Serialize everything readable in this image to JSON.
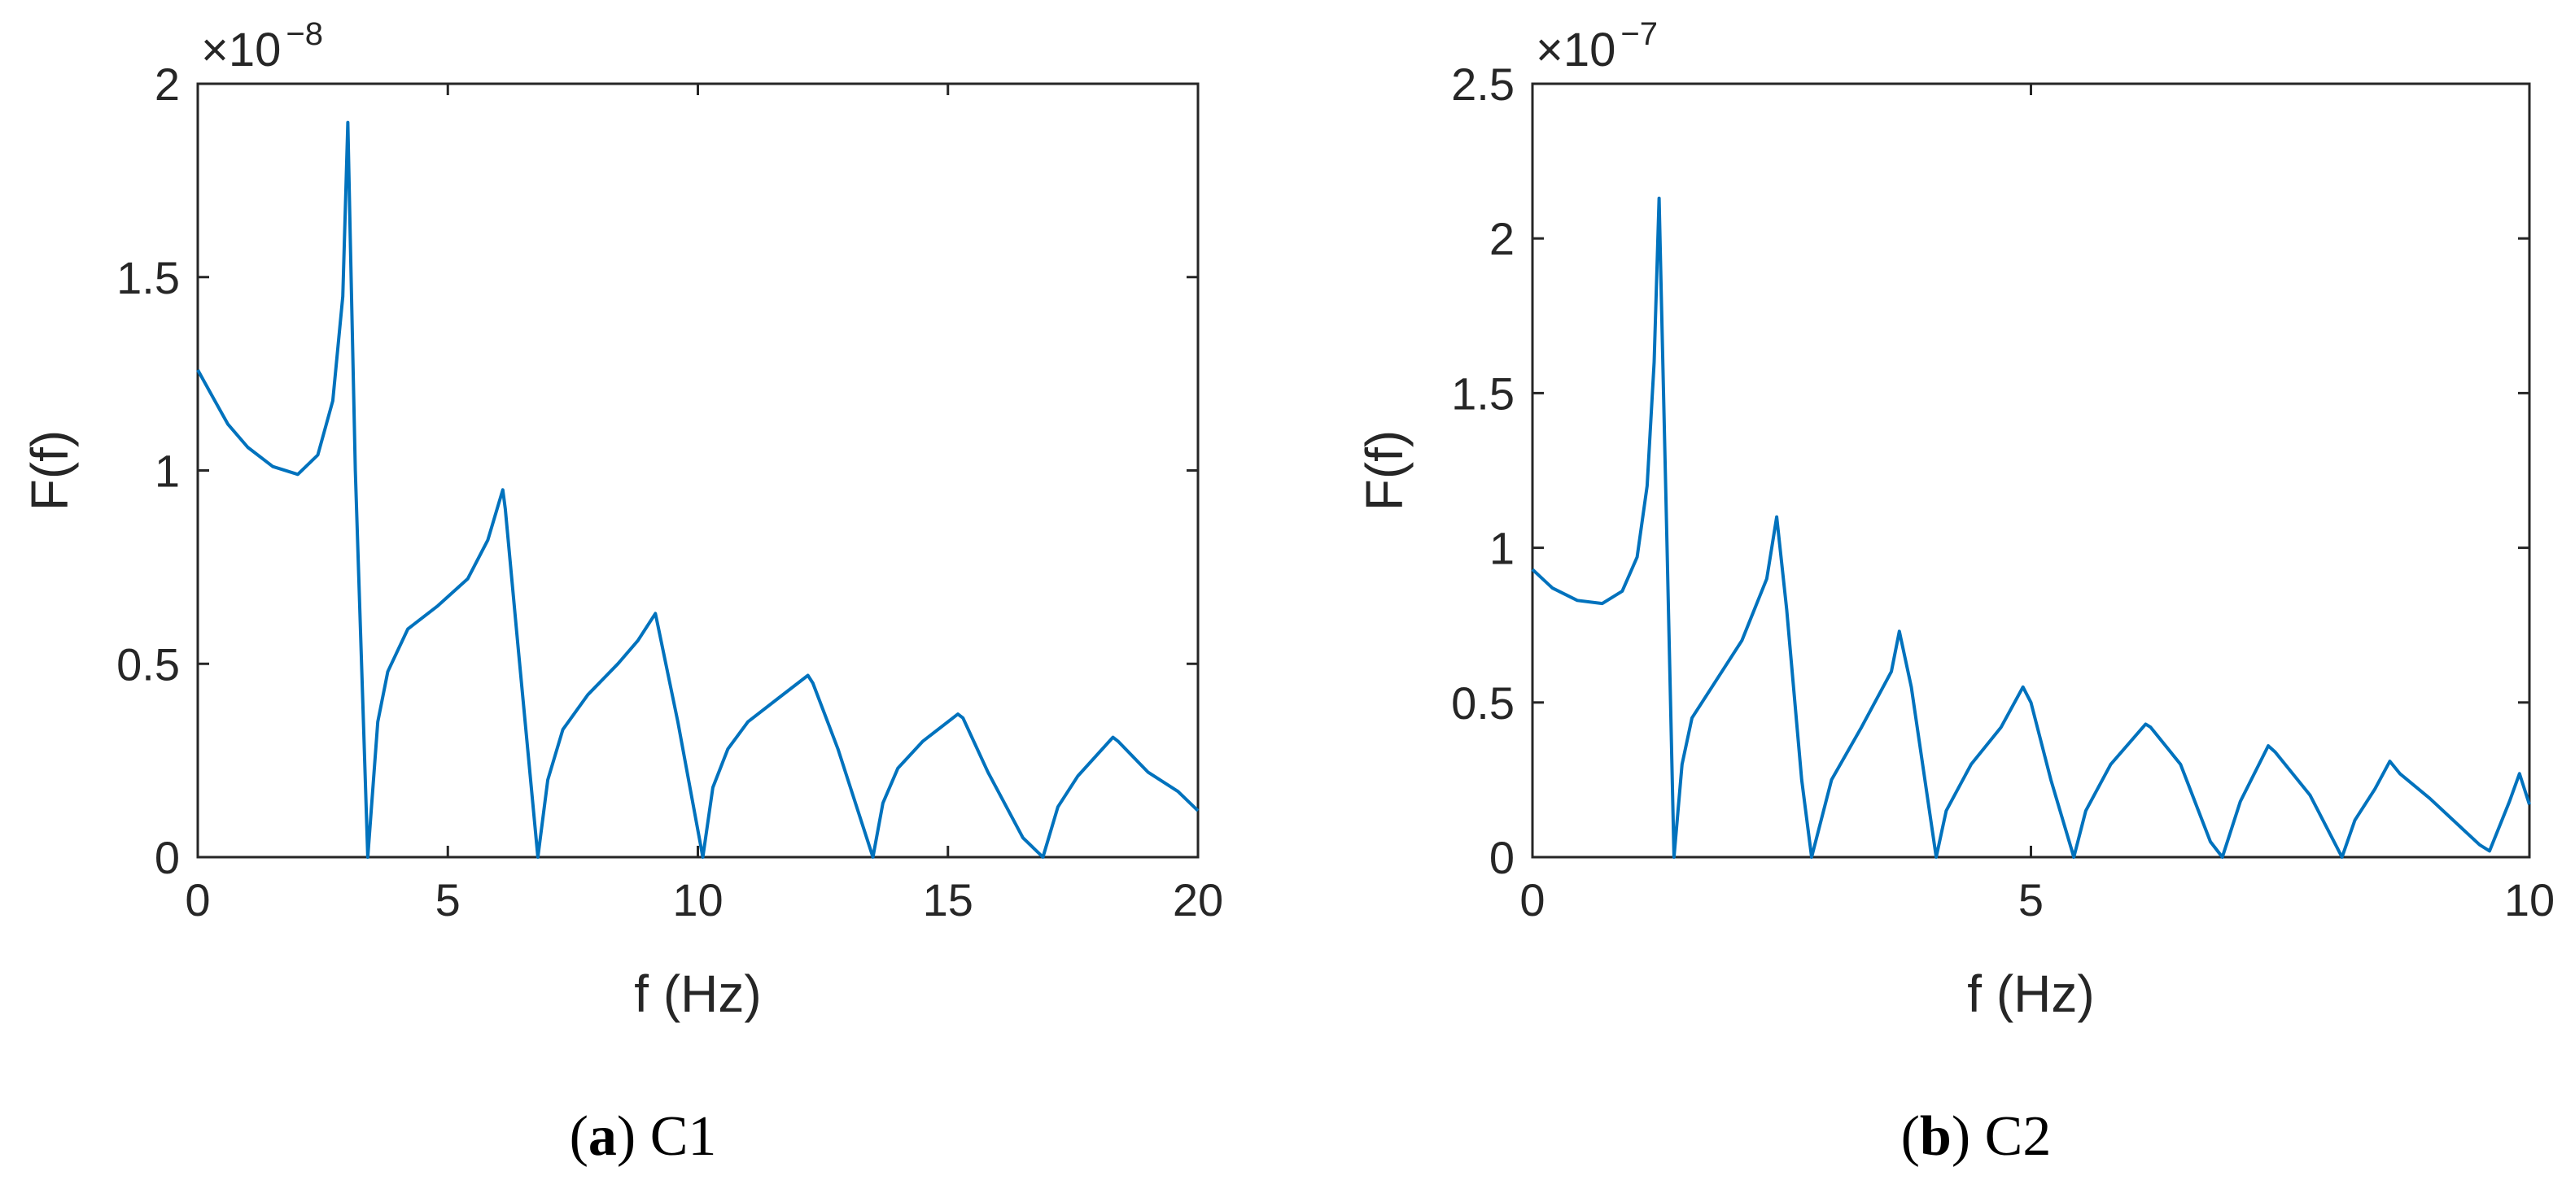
{
  "colors": {
    "series": "#0072BD",
    "axis": "#262626"
  },
  "chart_data": [
    {
      "type": "line",
      "caption": {
        "letter": "a",
        "name": "C1"
      },
      "xlabel": "f (Hz)",
      "ylabel": "F(f)",
      "multiplier": {
        "base": "×10",
        "exponent": "−8"
      },
      "xlim": [
        0,
        20
      ],
      "ylim": [
        0,
        2
      ],
      "xticks": [
        0,
        5,
        10,
        15,
        20
      ],
      "xtick_labels": [
        "0",
        "5",
        "10",
        "15",
        "20"
      ],
      "yticks": [
        0,
        0.5,
        1,
        1.5,
        2
      ],
      "ytick_labels": [
        "0",
        "0.5",
        "1",
        "1.5",
        "2"
      ],
      "series": [
        {
          "x": [
            0,
            0.3,
            0.6,
            1.0,
            1.5,
            2.0,
            2.4,
            2.7,
            2.9,
            3.0,
            3.05,
            3.15,
            3.3,
            3.4,
            3.6,
            3.8,
            4.2,
            4.8,
            5.4,
            5.8,
            6.1,
            6.15,
            6.4,
            6.8,
            7.0,
            7.3,
            7.8,
            8.4,
            8.8,
            9.15,
            9.2,
            9.6,
            10.1,
            10.3,
            10.6,
            11.0,
            11.6,
            12.2,
            12.3,
            12.8,
            13.5,
            13.7,
            14.0,
            14.5,
            15.2,
            15.3,
            15.8,
            16.5,
            16.9,
            17.2,
            17.6,
            18.3,
            18.4,
            19.0,
            19.6,
            20.0
          ],
          "y": [
            1.26,
            1.19,
            1.12,
            1.06,
            1.01,
            0.99,
            1.04,
            1.18,
            1.45,
            1.9,
            1.6,
            1.0,
            0.4,
            0.0,
            0.35,
            0.48,
            0.59,
            0.65,
            0.72,
            0.82,
            0.95,
            0.9,
            0.55,
            0.0,
            0.2,
            0.33,
            0.42,
            0.5,
            0.56,
            0.63,
            0.6,
            0.35,
            0.0,
            0.18,
            0.28,
            0.35,
            0.41,
            0.47,
            0.45,
            0.28,
            0.0,
            0.14,
            0.23,
            0.3,
            0.37,
            0.36,
            0.22,
            0.05,
            0.0,
            0.13,
            0.21,
            0.31,
            0.3,
            0.22,
            0.17,
            0.12
          ]
        }
      ]
    },
    {
      "type": "line",
      "caption": {
        "letter": "b",
        "name": "C2"
      },
      "xlabel": "f (Hz)",
      "ylabel": "F(f)",
      "multiplier": {
        "base": "×10",
        "exponent": "−7"
      },
      "xlim": [
        0,
        10
      ],
      "ylim": [
        0,
        2.5
      ],
      "xticks": [
        0,
        5,
        10
      ],
      "xtick_labels": [
        "0",
        "5",
        "10"
      ],
      "yticks": [
        0,
        0.5,
        1,
        1.5,
        2,
        2.5
      ],
      "ytick_labels": [
        "0",
        "0.5",
        "1",
        "1.5",
        "2",
        "2.5"
      ],
      "series": [
        {
          "x": [
            0,
            0.2,
            0.45,
            0.7,
            0.9,
            1.05,
            1.15,
            1.22,
            1.27,
            1.3,
            1.35,
            1.42,
            1.5,
            1.6,
            1.8,
            2.1,
            2.35,
            2.45,
            2.55,
            2.7,
            2.8,
            3.0,
            3.3,
            3.6,
            3.68,
            3.8,
            4.05,
            4.15,
            4.4,
            4.7,
            4.92,
            5.0,
            5.2,
            5.43,
            5.55,
            5.8,
            6.15,
            6.2,
            6.5,
            6.8,
            6.92,
            7.1,
            7.38,
            7.45,
            7.8,
            8.12,
            8.25,
            8.45,
            8.6,
            8.7,
            9.0,
            9.3,
            9.5,
            9.6,
            9.8,
            9.9,
            10.0
          ],
          "y": [
            0.93,
            0.87,
            0.83,
            0.82,
            0.86,
            0.97,
            1.2,
            1.6,
            2.13,
            1.7,
            1.0,
            0.0,
            0.3,
            0.45,
            0.55,
            0.7,
            0.9,
            1.1,
            0.8,
            0.25,
            0.0,
            0.25,
            0.42,
            0.6,
            0.73,
            0.55,
            0.0,
            0.15,
            0.3,
            0.42,
            0.55,
            0.5,
            0.25,
            0.0,
            0.15,
            0.3,
            0.43,
            0.42,
            0.3,
            0.05,
            0.0,
            0.18,
            0.36,
            0.34,
            0.2,
            0.0,
            0.12,
            0.22,
            0.31,
            0.27,
            0.19,
            0.1,
            0.04,
            0.02,
            0.18,
            0.27,
            0.17
          ]
        }
      ]
    }
  ]
}
